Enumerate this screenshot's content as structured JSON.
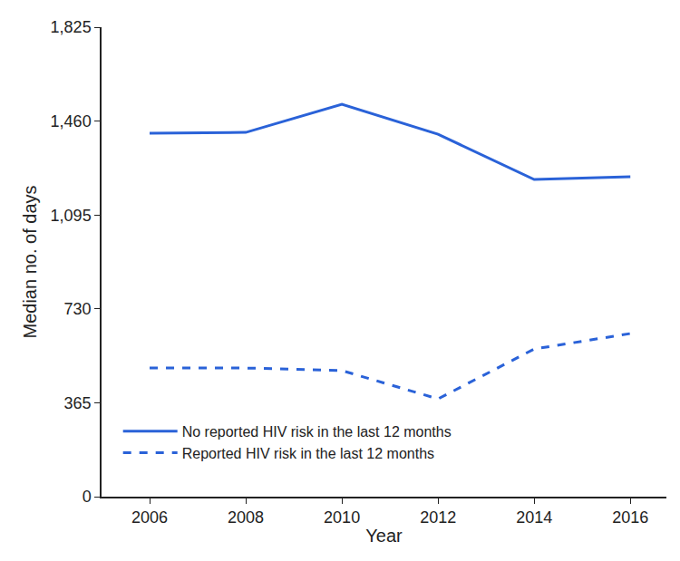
{
  "chart_data": {
    "type": "line",
    "x_label": "Year",
    "y_label": "Median no. of days",
    "x": [
      2006,
      2008,
      2010,
      2012,
      2014,
      2016
    ],
    "series": [
      {
        "name": "No reported HIV risk in the last 12 months",
        "color": "#2a62d8",
        "line_style": "solid",
        "values": [
          1413,
          1416,
          1525,
          1409,
          1233,
          1244
        ]
      },
      {
        "name": "Reported HIV risk in the last 12 months",
        "color": "#2a62d8",
        "line_style": "dashed",
        "values": [
          500,
          500,
          490,
          380,
          574,
          634
        ]
      }
    ],
    "xlim": [
      2005,
      2016.75
    ],
    "xticks": [
      2006,
      2008,
      2010,
      2012,
      2014,
      2016
    ],
    "ylim": [
      0,
      1825
    ],
    "yticks": [
      0,
      365,
      730,
      {
        "value": 1095,
        "label": "1,095"
      },
      {
        "value": 1460,
        "label": "1,460"
      },
      {
        "value": 1825,
        "label": "1,825"
      }
    ],
    "grid": false,
    "legend": "bottom left"
  }
}
